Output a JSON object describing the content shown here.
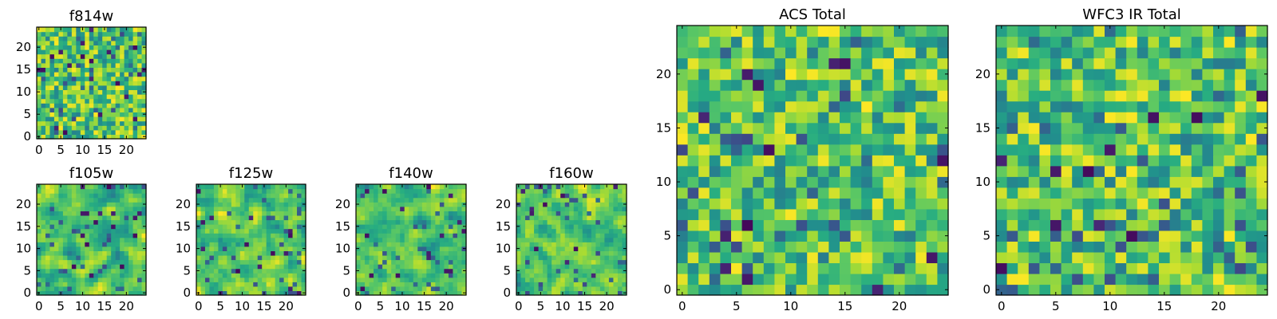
{
  "chart_data": [
    {
      "type": "heatmap",
      "panel": "f814w",
      "title": "f814w",
      "size": 25,
      "seed": 814,
      "smooth": false,
      "xlim": [
        0,
        25
      ],
      "ylim": [
        0,
        25
      ],
      "xticks": [
        0,
        5,
        10,
        15,
        20
      ],
      "yticks": [
        0,
        5,
        10,
        15,
        20
      ],
      "value_range": [
        0,
        1
      ],
      "colormap": "viridis"
    },
    {
      "type": "heatmap",
      "panel": "f105w",
      "title": "f105w",
      "size": 25,
      "seed": 105,
      "smooth": true,
      "xlim": [
        0,
        25
      ],
      "ylim": [
        0,
        25
      ],
      "xticks": [
        0,
        5,
        10,
        15,
        20
      ],
      "yticks": [
        0,
        5,
        10,
        15,
        20
      ],
      "value_range": [
        0,
        1
      ],
      "colormap": "viridis"
    },
    {
      "type": "heatmap",
      "panel": "f125w",
      "title": "f125w",
      "size": 25,
      "seed": 125,
      "smooth": true,
      "xlim": [
        0,
        25
      ],
      "ylim": [
        0,
        25
      ],
      "xticks": [
        0,
        5,
        10,
        15,
        20
      ],
      "yticks": [
        0,
        5,
        10,
        15,
        20
      ],
      "value_range": [
        0,
        1
      ],
      "colormap": "viridis"
    },
    {
      "type": "heatmap",
      "panel": "f140w",
      "title": "f140w",
      "size": 25,
      "seed": 140,
      "smooth": true,
      "xlim": [
        0,
        25
      ],
      "ylim": [
        0,
        25
      ],
      "xticks": [
        0,
        5,
        10,
        15,
        20
      ],
      "yticks": [
        0,
        5,
        10,
        15,
        20
      ],
      "value_range": [
        0,
        1
      ],
      "colormap": "viridis"
    },
    {
      "type": "heatmap",
      "panel": "f160w",
      "title": "f160w",
      "size": 25,
      "seed": 160,
      "smooth": true,
      "xlim": [
        0,
        25
      ],
      "ylim": [
        0,
        25
      ],
      "xticks": [
        0,
        5,
        10,
        15,
        20
      ],
      "yticks": [
        0,
        5,
        10,
        15,
        20
      ],
      "value_range": [
        0,
        1
      ],
      "colormap": "viridis"
    },
    {
      "type": "heatmap",
      "panel": "acs-total",
      "title": "ACS Total",
      "size": 25,
      "seed": 7,
      "smooth": false,
      "xlim": [
        0,
        25
      ],
      "ylim": [
        0,
        25
      ],
      "xticks": [
        0,
        5,
        10,
        15,
        20
      ],
      "yticks": [
        0,
        5,
        10,
        15,
        20
      ],
      "value_range": [
        0,
        1
      ],
      "colormap": "viridis"
    },
    {
      "type": "heatmap",
      "panel": "wfc3-ir-total",
      "title": "WFC3 IR Total",
      "size": 25,
      "seed": 3,
      "smooth": false,
      "xlim": [
        0,
        25
      ],
      "ylim": [
        0,
        25
      ],
      "xticks": [
        0,
        5,
        10,
        15,
        20
      ],
      "yticks": [
        0,
        5,
        10,
        15,
        20
      ],
      "value_range": [
        0,
        1
      ],
      "colormap": "viridis"
    }
  ]
}
